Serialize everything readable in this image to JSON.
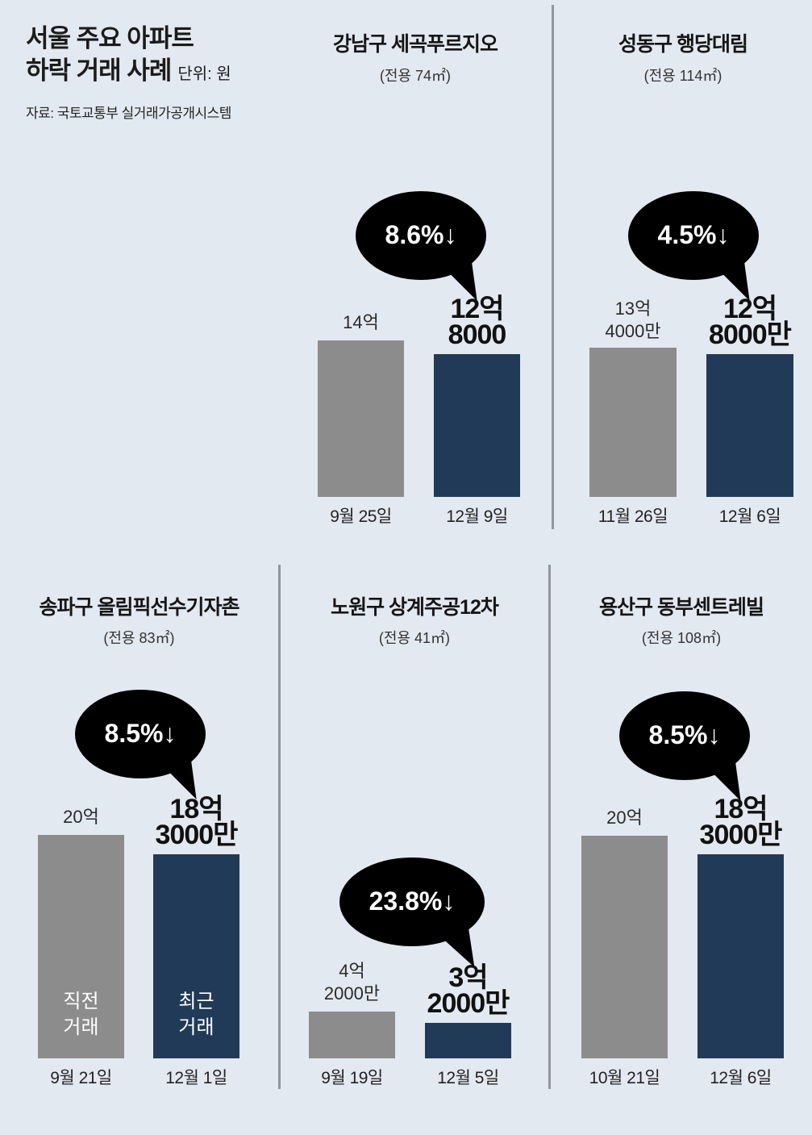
{
  "header": {
    "title_line1": "서울 주요 아파트",
    "title_line2": "하락 거래 사례",
    "unit": "단위: 원",
    "source": "자료: 국토교통부 실거래가공개시스템"
  },
  "colors": {
    "background": "#e3e9f0",
    "previous_bar": "#8c8c8c",
    "recent_bar": "#213a57",
    "bubble": "#000000"
  },
  "bar_notes": {
    "previous": "직전\n거래",
    "recent": "최근\n거래"
  },
  "chart_data": [
    {
      "type": "bar",
      "title": "강남구 세곡푸르지오",
      "subtitle": "(전용 74㎡)",
      "categories": [
        "9월 25일",
        "12월 9일"
      ],
      "values": [
        1400000000,
        1280000000
      ],
      "value_labels": [
        "14억",
        "12억\n8000"
      ],
      "change_label": "8.6%↓"
    },
    {
      "type": "bar",
      "title": "성동구 행당대림",
      "subtitle": "(전용 114㎡)",
      "categories": [
        "11월 26일",
        "12월 6일"
      ],
      "values": [
        1340000000,
        1280000000
      ],
      "value_labels": [
        "13억\n4000만",
        "12억\n8000만"
      ],
      "change_label": "4.5%↓"
    },
    {
      "type": "bar",
      "title": "송파구 올림픽선수기자촌",
      "subtitle": "(전용 83㎡)",
      "categories": [
        "9월 21일",
        "12월 1일"
      ],
      "values": [
        2000000000,
        1830000000
      ],
      "value_labels": [
        "20억",
        "18억\n3000만"
      ],
      "change_label": "8.5%↓"
    },
    {
      "type": "bar",
      "title": "노원구 상계주공12차",
      "subtitle": "(전용 41㎡)",
      "categories": [
        "9월 19일",
        "12월 5일"
      ],
      "values": [
        420000000,
        320000000
      ],
      "value_labels": [
        "4억\n2000만",
        "3억\n2000만"
      ],
      "change_label": "23.8%↓"
    },
    {
      "type": "bar",
      "title": "용산구 동부센트레빌",
      "subtitle": "(전용 108㎡)",
      "categories": [
        "10월 21일",
        "12월 6일"
      ],
      "values": [
        2000000000,
        1830000000
      ],
      "value_labels": [
        "20억",
        "18억\n3000만"
      ],
      "change_label": "8.5%↓"
    }
  ]
}
